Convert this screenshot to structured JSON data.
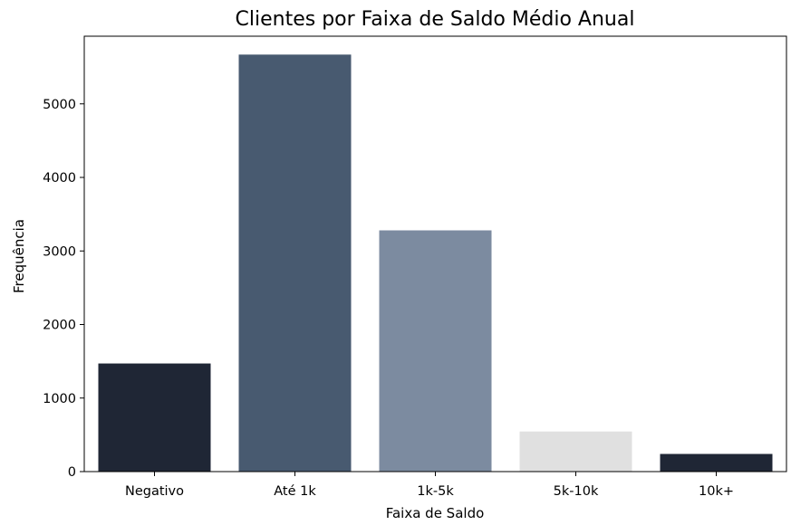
{
  "chart_data": {
    "type": "bar",
    "title": "Clientes por Faixa de Saldo Médio Anual",
    "xlabel": "Faixa de Saldo",
    "ylabel": "Frequência",
    "categories": [
      "Negativo",
      "Até 1k",
      "1k-5k",
      "5k-10k",
      "10k+"
    ],
    "values": [
      1470,
      5670,
      3280,
      545,
      240
    ],
    "colors": [
      "#1f2635",
      "#485a70",
      "#7c8ba0",
      "#e0e0e0",
      "#1f2635"
    ],
    "ylim": [
      0,
      5920
    ],
    "yticks": [
      0,
      1000,
      2000,
      3000,
      4000,
      5000
    ],
    "grid": false,
    "legend": "none"
  }
}
